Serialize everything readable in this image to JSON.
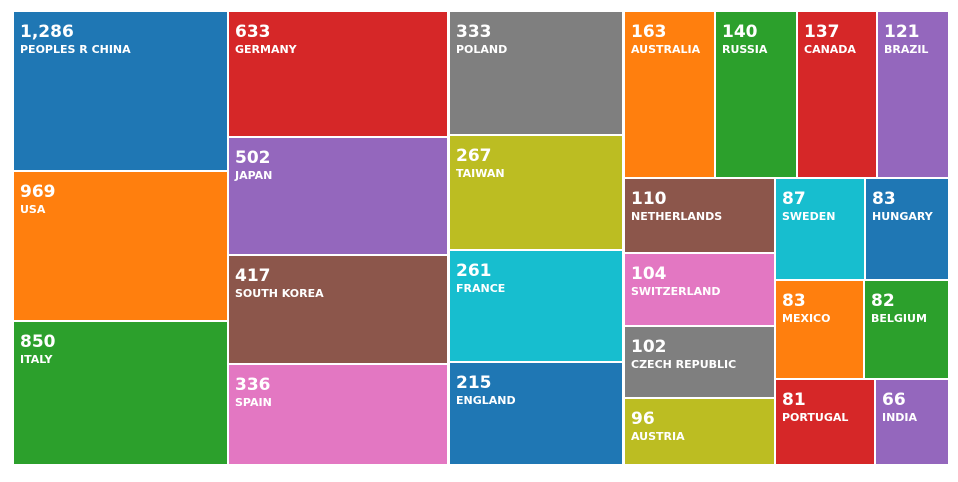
{
  "chart_data": {
    "type": "treemap",
    "categories": [
      "PEOPLES R CHINA",
      "USA",
      "ITALY",
      "GERMANY",
      "JAPAN",
      "SOUTH KOREA",
      "SPAIN",
      "POLAND",
      "TAIWAN",
      "FRANCE",
      "ENGLAND",
      "AUSTRALIA",
      "RUSSIA",
      "CANADA",
      "BRAZIL",
      "NETHERLANDS",
      "SWEDEN",
      "HUNGARY",
      "SWITZERLAND",
      "MEXICO",
      "BELGIUM",
      "CZECH REPUBLIC",
      "AUSTRIA",
      "PORTUGAL",
      "INDIA"
    ],
    "values": [
      1286,
      969,
      850,
      633,
      502,
      417,
      336,
      333,
      267,
      261,
      215,
      163,
      140,
      137,
      121,
      110,
      87,
      83,
      104,
      83,
      82,
      102,
      96,
      81,
      66
    ],
    "value_labels": [
      "1,286",
      "969",
      "850",
      "633",
      "502",
      "417",
      "336",
      "333",
      "267",
      "261",
      "215",
      "163",
      "140",
      "137",
      "121",
      "110",
      "87",
      "83",
      "104",
      "83",
      "82",
      "102",
      "96",
      "81",
      "66"
    ],
    "colors": [
      "#1f77b4",
      "#ff7f0e",
      "#2ca02c",
      "#d62728",
      "#9467bd",
      "#8c564b",
      "#e377c2",
      "#7f7f7f",
      "#bcbd22",
      "#17becf",
      "#1f77b4",
      "#ff7f0e",
      "#2ca02c",
      "#d62728",
      "#9467bd",
      "#8c564b",
      "#17becf",
      "#1f77b4",
      "#e377c2",
      "#ff7f0e",
      "#2ca02c",
      "#7f7f7f",
      "#bcbd22",
      "#d62728",
      "#9467bd"
    ],
    "title": "",
    "xlabel": "",
    "ylabel": ""
  }
}
